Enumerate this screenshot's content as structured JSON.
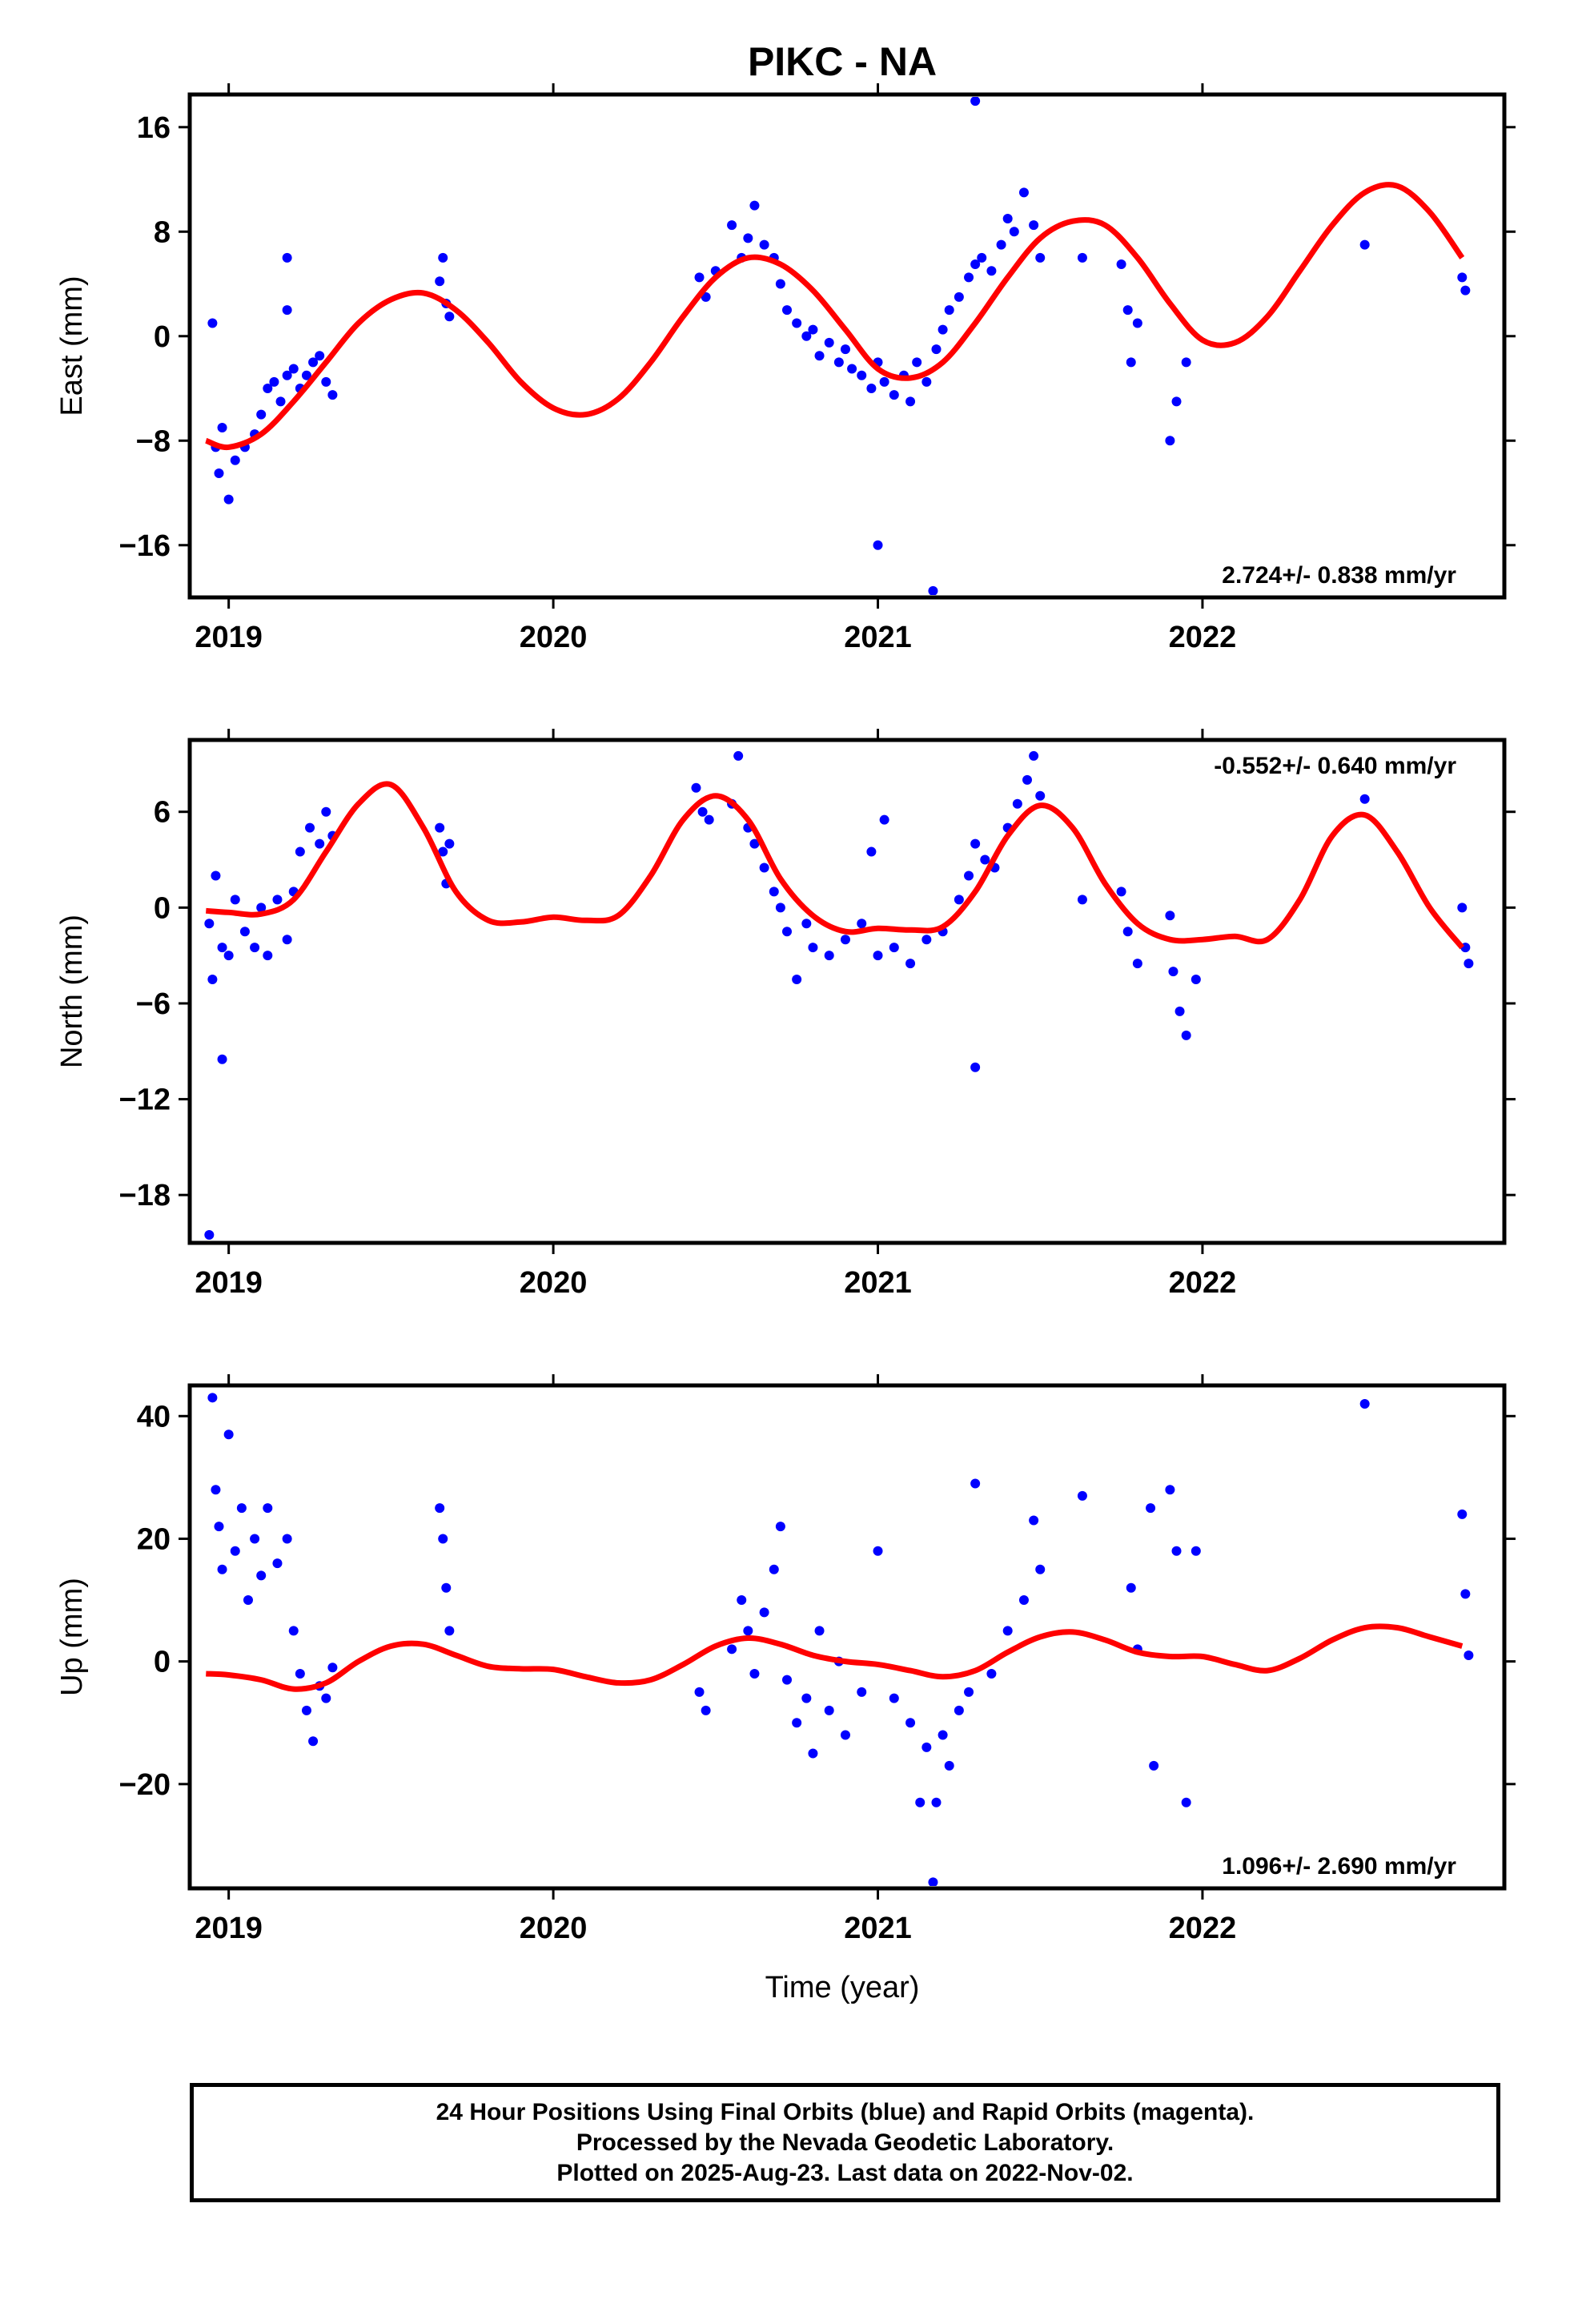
{
  "title": "PIKC - NA",
  "xlabel": "Time (year)",
  "footer": {
    "line1": "24 Hour Positions Using Final Orbits (blue) and Rapid Orbits (magenta).",
    "line2": "Processed by the Nevada Geodetic Laboratory.",
    "line3": "Plotted on 2025-Aug-23. Last data on 2022-Nov-02."
  },
  "colors": {
    "points": "#0000ff",
    "fit": "#ff0000",
    "axes": "#000000"
  },
  "chart_data": [
    {
      "type": "scatter",
      "ylabel": "East (mm)",
      "rate_text": "2.724+/- 0.838 mm/yr",
      "rate_position": "bottom-right",
      "xlim": [
        2018.88,
        2022.93
      ],
      "ylim": [
        -20,
        18.5
      ],
      "xticks": [
        2019,
        2020,
        2021,
        2022
      ],
      "yticks": [
        16,
        8,
        0,
        -8,
        -16
      ],
      "series": [
        {
          "kind": "points",
          "x": [
            2018.95,
            2018.96,
            2018.97,
            2018.98,
            2019.0,
            2019.02,
            2019.05,
            2019.08,
            2019.1,
            2019.12,
            2019.14,
            2019.16,
            2019.18,
            2019.2,
            2019.22,
            2019.24,
            2019.26,
            2019.28,
            2019.3,
            2019.32,
            2019.18,
            2019.18,
            2019.65,
            2019.66,
            2019.67,
            2019.68,
            2020.45,
            2020.47,
            2020.5,
            2020.55,
            2020.58,
            2020.6,
            2020.62,
            2020.65,
            2020.68,
            2020.7,
            2020.72,
            2020.75,
            2020.78,
            2020.8,
            2020.82,
            2020.85,
            2020.88,
            2020.9,
            2020.92,
            2020.95,
            2020.98,
            2021.0,
            2021.02,
            2021.05,
            2021.08,
            2021.1,
            2021.12,
            2021.15,
            2021.18,
            2021.2,
            2021.22,
            2021.25,
            2021.28,
            2021.3,
            2021.32,
            2021.35,
            2021.38,
            2021.4,
            2021.42,
            2021.45,
            2021.48,
            2021.5,
            2021.3,
            2021.17,
            2021.0,
            2021.63,
            2021.75,
            2021.77,
            2021.78,
            2021.8,
            2021.9,
            2021.92,
            2021.95,
            2022.5,
            2022.8,
            2022.81
          ],
          "y": [
            1.0,
            -8.5,
            -10.5,
            -7.0,
            -12.5,
            -9.5,
            -8.5,
            -7.5,
            -6.0,
            -4.0,
            -3.5,
            -5.0,
            -3.0,
            -2.5,
            -4.0,
            -3.0,
            -2.0,
            -1.5,
            -3.5,
            -4.5,
            6.0,
            2.0,
            4.2,
            6.0,
            2.5,
            1.5,
            4.5,
            3.0,
            5.0,
            8.5,
            6.0,
            7.5,
            10.0,
            7.0,
            6.0,
            4.0,
            2.0,
            1.0,
            0.0,
            0.5,
            -1.5,
            -0.5,
            -2.0,
            -1.0,
            -2.5,
            -3.0,
            -4.0,
            -2.0,
            -3.5,
            -4.5,
            -3.0,
            -5.0,
            -2.0,
            -3.5,
            -1.0,
            0.5,
            2.0,
            3.0,
            4.5,
            5.5,
            6.0,
            5.0,
            7.0,
            9.0,
            8.0,
            11.0,
            8.5,
            6.0,
            18.0,
            -19.5,
            -16.0,
            6.0,
            5.5,
            2.0,
            -2.0,
            1.0,
            -8.0,
            -5.0,
            -2.0,
            7.0,
            4.5,
            3.5
          ]
        },
        {
          "kind": "fit",
          "x": [
            2018.93,
            2019.0,
            2019.1,
            2019.2,
            2019.3,
            2019.4,
            2019.5,
            2019.6,
            2019.7,
            2019.8,
            2019.9,
            2020.0,
            2020.1,
            2020.2,
            2020.3,
            2020.4,
            2020.5,
            2020.6,
            2020.7,
            2020.8,
            2020.9,
            2021.0,
            2021.1,
            2021.2,
            2021.3,
            2021.4,
            2021.5,
            2021.6,
            2021.7,
            2021.8,
            2021.9,
            2022.0,
            2022.1,
            2022.2,
            2022.3,
            2022.4,
            2022.5,
            2022.6,
            2022.7,
            2022.8
          ],
          "y": [
            -8.0,
            -8.5,
            -7.5,
            -5.0,
            -2.0,
            1.0,
            2.8,
            3.3,
            2.0,
            -0.5,
            -3.5,
            -5.5,
            -6.0,
            -4.8,
            -2.0,
            1.5,
            4.5,
            6.0,
            5.5,
            3.5,
            0.5,
            -2.5,
            -3.2,
            -2.0,
            1.0,
            4.5,
            7.5,
            8.8,
            8.5,
            6.0,
            2.5,
            -0.3,
            -0.5,
            1.5,
            5.0,
            8.5,
            11.0,
            11.5,
            9.5,
            6.0
          ]
        }
      ]
    },
    {
      "type": "scatter",
      "ylabel": "North (mm)",
      "rate_text": "-0.552+/- 0.640 mm/yr",
      "rate_position": "top-right",
      "xlim": [
        2018.88,
        2022.93
      ],
      "ylim": [
        -21,
        10.5
      ],
      "xticks": [
        2019,
        2020,
        2021,
        2022
      ],
      "yticks": [
        6,
        0,
        -6,
        -12,
        -18
      ],
      "series": [
        {
          "kind": "points",
          "x": [
            2018.94,
            2018.95,
            2018.96,
            2018.98,
            2019.0,
            2019.02,
            2019.05,
            2019.08,
            2019.1,
            2019.12,
            2019.15,
            2019.18,
            2019.2,
            2019.22,
            2019.25,
            2019.28,
            2019.3,
            2019.32,
            2018.98,
            2018.94,
            2019.65,
            2019.66,
            2019.67,
            2019.68,
            2020.44,
            2020.46,
            2020.48,
            2020.55,
            2020.57,
            2020.6,
            2020.62,
            2020.65,
            2020.68,
            2020.7,
            2020.72,
            2020.75,
            2020.78,
            2020.8,
            2020.85,
            2020.9,
            2020.95,
            2021.0,
            2021.05,
            2021.1,
            2021.15,
            2021.2,
            2021.25,
            2021.28,
            2021.3,
            2021.33,
            2021.36,
            2021.4,
            2021.43,
            2021.46,
            2021.48,
            2021.5,
            2020.98,
            2021.02,
            2021.3,
            2021.63,
            2021.75,
            2021.77,
            2021.8,
            2021.9,
            2021.91,
            2021.93,
            2021.95,
            2021.98,
            2022.5,
            2022.8,
            2022.81,
            2022.82
          ],
          "y": [
            -1.0,
            -4.5,
            2.0,
            -2.5,
            -3.0,
            0.5,
            -1.5,
            -2.5,
            0.0,
            -3.0,
            0.5,
            -2.0,
            1.0,
            3.5,
            5.0,
            4.0,
            6.0,
            4.5,
            -9.5,
            -20.5,
            5.0,
            3.5,
            1.5,
            4.0,
            7.5,
            6.0,
            5.5,
            6.5,
            9.5,
            5.0,
            4.0,
            2.5,
            1.0,
            0.0,
            -1.5,
            -4.5,
            -1.0,
            -2.5,
            -3.0,
            -2.0,
            -1.0,
            -3.0,
            -2.5,
            -3.5,
            -2.0,
            -1.5,
            0.5,
            2.0,
            4.0,
            3.0,
            2.5,
            5.0,
            6.5,
            8.0,
            9.5,
            7.0,
            3.5,
            5.5,
            -10.0,
            0.5,
            1.0,
            -1.5,
            -3.5,
            -0.5,
            -4.0,
            -6.5,
            -8.0,
            -4.5,
            6.8,
            0.0,
            -2.5,
            -3.5
          ]
        },
        {
          "kind": "fit",
          "x": [
            2018.93,
            2019.0,
            2019.1,
            2019.2,
            2019.3,
            2019.4,
            2019.5,
            2019.6,
            2019.7,
            2019.8,
            2019.9,
            2020.0,
            2020.1,
            2020.2,
            2020.3,
            2020.4,
            2020.5,
            2020.6,
            2020.7,
            2020.8,
            2020.9,
            2021.0,
            2021.1,
            2021.2,
            2021.3,
            2021.4,
            2021.5,
            2021.6,
            2021.7,
            2021.8,
            2021.9,
            2022.0,
            2022.1,
            2022.2,
            2022.3,
            2022.4,
            2022.5,
            2022.6,
            2022.7,
            2022.8
          ],
          "y": [
            -0.2,
            -0.3,
            -0.4,
            0.5,
            3.5,
            6.5,
            7.7,
            5.0,
            1.0,
            -0.8,
            -0.9,
            -0.6,
            -0.8,
            -0.5,
            2.0,
            5.5,
            7.0,
            5.5,
            1.8,
            -0.5,
            -1.5,
            -1.3,
            -1.4,
            -1.2,
            1.0,
            4.5,
            6.4,
            5.0,
            1.5,
            -1.0,
            -2.0,
            -2.0,
            -1.8,
            -2.0,
            0.5,
            4.5,
            5.8,
            3.5,
            0.0,
            -2.5
          ]
        }
      ]
    },
    {
      "type": "scatter",
      "ylabel": "Up (mm)",
      "rate_text": "1.096+/- 2.690 mm/yr",
      "rate_position": "bottom-right",
      "xlim": [
        2018.88,
        2022.93
      ],
      "ylim": [
        -37,
        45
      ],
      "xticks": [
        2019,
        2020,
        2021,
        2022
      ],
      "yticks": [
        40,
        20,
        0,
        -20
      ],
      "series": [
        {
          "kind": "points",
          "x": [
            2018.95,
            2018.96,
            2018.97,
            2018.98,
            2019.0,
            2019.02,
            2019.04,
            2019.06,
            2019.08,
            2019.1,
            2019.12,
            2019.15,
            2019.18,
            2019.2,
            2019.22,
            2019.24,
            2019.26,
            2019.28,
            2019.3,
            2019.32,
            2019.65,
            2019.66,
            2019.67,
            2019.68,
            2020.45,
            2020.47,
            2020.55,
            2020.58,
            2020.6,
            2020.62,
            2020.65,
            2020.68,
            2020.7,
            2020.72,
            2020.75,
            2020.78,
            2020.8,
            2020.82,
            2020.85,
            2020.88,
            2020.9,
            2020.95,
            2021.0,
            2021.05,
            2021.1,
            2021.15,
            2021.18,
            2021.2,
            2021.22,
            2021.25,
            2021.28,
            2021.3,
            2021.35,
            2021.4,
            2021.45,
            2021.48,
            2021.5,
            2021.13,
            2021.17,
            2021.63,
            2021.78,
            2021.8,
            2021.84,
            2021.85,
            2021.9,
            2021.92,
            2021.95,
            2021.98,
            2022.5,
            2022.8,
            2022.81,
            2022.82
          ],
          "y": [
            43.0,
            28.0,
            22.0,
            15.0,
            37.0,
            18.0,
            25.0,
            10.0,
            20.0,
            14.0,
            25.0,
            16.0,
            20.0,
            5.0,
            -2.0,
            -8.0,
            -13.0,
            -4.0,
            -6.0,
            -1.0,
            25.0,
            20.0,
            12.0,
            5.0,
            -5.0,
            -8.0,
            2.0,
            10.0,
            5.0,
            -2.0,
            8.0,
            15.0,
            22.0,
            -3.0,
            -10.0,
            -6.0,
            -15.0,
            5.0,
            -8.0,
            0.0,
            -12.0,
            -5.0,
            18.0,
            -6.0,
            -10.0,
            -14.0,
            -23.0,
            -12.0,
            -17.0,
            -8.0,
            -5.0,
            29.0,
            -2.0,
            5.0,
            10.0,
            23.0,
            15.0,
            -23.0,
            -36.0,
            27.0,
            12.0,
            2.0,
            25.0,
            -17.0,
            28.0,
            18.0,
            -23.0,
            18.0,
            42.0,
            24.0,
            11.0,
            1.0
          ]
        },
        {
          "kind": "fit",
          "x": [
            2018.93,
            2019.0,
            2019.1,
            2019.2,
            2019.3,
            2019.4,
            2019.5,
            2019.6,
            2019.7,
            2019.8,
            2019.9,
            2020.0,
            2020.1,
            2020.2,
            2020.3,
            2020.4,
            2020.5,
            2020.6,
            2020.7,
            2020.8,
            2020.9,
            2021.0,
            2021.1,
            2021.2,
            2021.3,
            2021.4,
            2021.5,
            2021.6,
            2021.7,
            2021.8,
            2021.9,
            2022.0,
            2022.1,
            2022.2,
            2022.3,
            2022.4,
            2022.5,
            2022.6,
            2022.7,
            2022.8
          ],
          "y": [
            -2.0,
            -2.2,
            -3.0,
            -4.5,
            -3.5,
            0.0,
            2.5,
            2.8,
            1.0,
            -0.8,
            -1.2,
            -1.3,
            -2.5,
            -3.5,
            -3.0,
            -0.5,
            2.5,
            3.8,
            2.8,
            1.0,
            0.0,
            -0.5,
            -1.5,
            -2.5,
            -1.5,
            1.5,
            4.0,
            4.8,
            3.5,
            1.5,
            0.8,
            0.8,
            -0.5,
            -1.5,
            0.5,
            3.5,
            5.5,
            5.5,
            4.0,
            2.5
          ]
        }
      ]
    }
  ]
}
